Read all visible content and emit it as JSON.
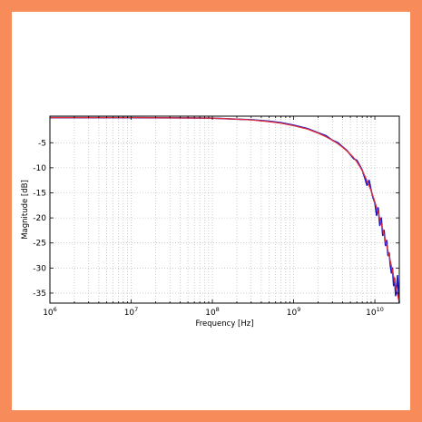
{
  "colors": {
    "border": "#f78c5a",
    "measured": "#1a1acc",
    "fit": "#e0303a",
    "grid": "#b0b0b0"
  },
  "chart_data": {
    "type": "line",
    "title": "",
    "xlabel": "Frequency [Hz]",
    "ylabel": "Magnitude [dB]",
    "xscale": "log",
    "xlim": [
      1000000,
      20000000000
    ],
    "ylim": [
      -37,
      0.3
    ],
    "grid": true,
    "legend": "none",
    "x_ticks": [
      {
        "value": 1000000,
        "base": "10",
        "exp": "6"
      },
      {
        "value": 10000000,
        "base": "10",
        "exp": "7"
      },
      {
        "value": 100000000,
        "base": "10",
        "exp": "8"
      },
      {
        "value": 1000000000,
        "base": "10",
        "exp": "9"
      },
      {
        "value": 10000000000,
        "base": "10",
        "exp": "10"
      }
    ],
    "y_ticks": [
      {
        "value": -5,
        "label": "-5"
      },
      {
        "value": -10,
        "label": "-10"
      },
      {
        "value": -15,
        "label": "-15"
      },
      {
        "value": -20,
        "label": "-20"
      },
      {
        "value": -25,
        "label": "-25"
      },
      {
        "value": -30,
        "label": "-30"
      },
      {
        "value": -35,
        "label": "-35"
      }
    ],
    "series": [
      {
        "color": "#1a1acc",
        "x": [
          1000000,
          10000000,
          50000000,
          100000000,
          200000000,
          300000000,
          500000000,
          700000000,
          1000000000,
          1500000000,
          2000000000,
          2500000000,
          3000000000,
          3500000000,
          4000000000,
          4500000000,
          5000000000,
          5500000000,
          6000000000,
          6500000000,
          7000000000,
          7500000000,
          8000000000,
          8500000000,
          9000000000,
          9500000000,
          10000000000,
          10500000000,
          11000000000,
          11500000000,
          12000000000,
          12500000000,
          13000000000,
          13500000000,
          14000000000,
          14500000000,
          15000000000,
          15500000000,
          16000000000,
          16500000000,
          17000000000,
          17500000000,
          18000000000,
          18500000000,
          19000000000,
          19500000000,
          20000000000
        ],
        "y": [
          0,
          0,
          -0.05,
          -0.1,
          -0.3,
          -0.4,
          -0.7,
          -1.0,
          -1.5,
          -2.2,
          -3.0,
          -3.6,
          -4.5,
          -5.0,
          -5.8,
          -6.5,
          -7.4,
          -8.2,
          -8.5,
          -9.5,
          -10.5,
          -12.0,
          -13.5,
          -12.5,
          -14.5,
          -16.0,
          -17.0,
          -19.5,
          -18.0,
          -21.5,
          -20.0,
          -23.5,
          -22.5,
          -25.5,
          -24.5,
          -27.5,
          -27.0,
          -29.5,
          -31.0,
          -30.0,
          -33.5,
          -32.0,
          -35.5,
          -34.0,
          -31.5,
          -34.5,
          -37.0
        ]
      },
      {
        "color": "#e0303a",
        "x": [
          1000000,
          10000000,
          50000000,
          100000000,
          200000000,
          300000000,
          500000000,
          700000000,
          1000000000,
          1500000000,
          2000000000,
          2500000000,
          3000000000,
          3500000000,
          4000000000,
          4500000000,
          5000000000,
          5500000000,
          6000000000,
          6500000000,
          7000000000,
          7500000000,
          8000000000,
          8500000000,
          9000000000,
          9500000000,
          10000000000,
          10500000000,
          11000000000,
          11500000000,
          12000000000,
          12500000000,
          13000000000,
          13500000000,
          14000000000,
          14500000000,
          15000000000,
          15500000000,
          16000000000,
          16500000000,
          17000000000,
          17500000000,
          18000000000,
          18500000000,
          19000000000,
          19500000000,
          20000000000
        ],
        "y": [
          0,
          0,
          -0.05,
          -0.1,
          -0.3,
          -0.45,
          -0.8,
          -1.1,
          -1.6,
          -2.3,
          -3.1,
          -3.8,
          -4.5,
          -5.2,
          -5.9,
          -6.6,
          -7.3,
          -8.0,
          -8.8,
          -9.7,
          -10.6,
          -11.6,
          -12.6,
          -13.6,
          -14.6,
          -15.7,
          -16.8,
          -17.9,
          -19.0,
          -20.1,
          -21.2,
          -22.3,
          -23.4,
          -24.5,
          -25.6,
          -26.6,
          -27.6,
          -28.6,
          -29.6,
          -30.6,
          -31.6,
          -32.6,
          -33.5,
          -34.4,
          -35.3,
          -36.1,
          -36.9
        ]
      }
    ]
  }
}
